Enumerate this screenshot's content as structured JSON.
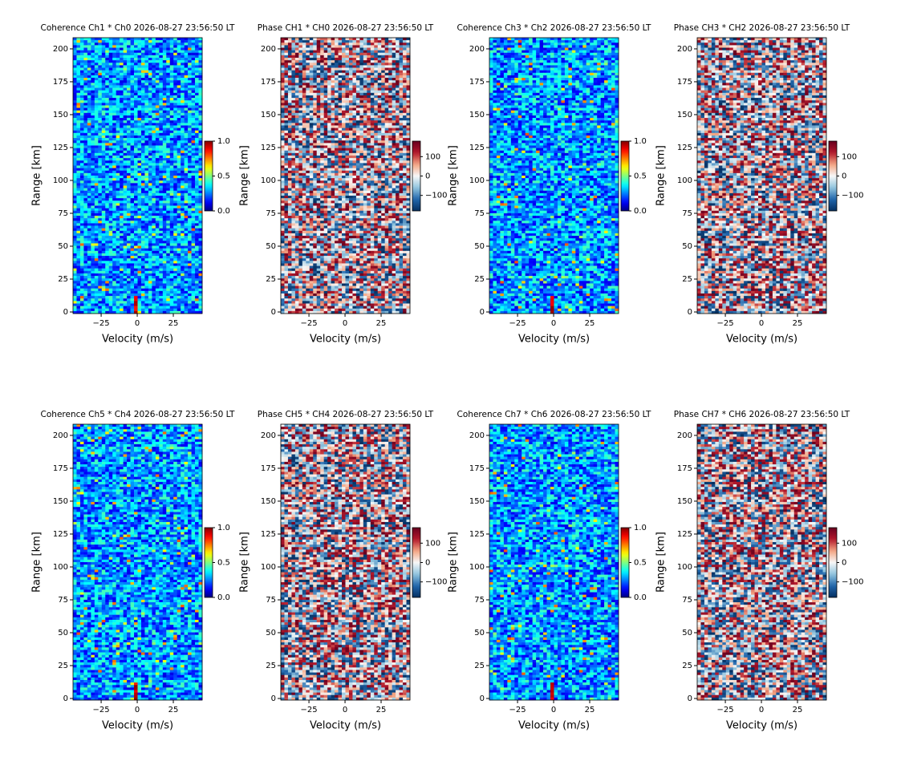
{
  "chart_data": [
    {
      "type": "heatmap",
      "title": "Coherence Ch1 * Ch0 2026-08-27 23:56:50 LT",
      "xlabel": "Velocity (m/s)",
      "ylabel": "Range [km]",
      "xlim": [
        -44.5,
        45
      ],
      "ylim": [
        -1.2,
        208.5
      ],
      "xticks": [
        {
          "value": -25,
          "label": "−25"
        },
        0,
        25
      ],
      "yticks": [
        0,
        25,
        50,
        75,
        100,
        125,
        150,
        175,
        200
      ],
      "colormap": "jet",
      "clim": [
        0,
        1
      ],
      "cticks": [
        {
          "value": 0,
          "label": "0.0"
        },
        {
          "value": 0.5,
          "label": "0.5"
        },
        {
          "value": 1,
          "label": "1.0"
        }
      ]
    },
    {
      "type": "heatmap",
      "title": "Phase CH1 * CH0 2026-08-27 23:56:50 LT",
      "xlabel": "Velocity (m/s)",
      "ylabel": "Range [km]",
      "xlim": [
        -44.5,
        45
      ],
      "ylim": [
        -1.2,
        208.5
      ],
      "xticks": [
        {
          "value": -25,
          "label": "−25"
        },
        0,
        25
      ],
      "yticks": [
        0,
        25,
        50,
        75,
        100,
        125,
        150,
        175,
        200
      ],
      "colormap": "RdBu_r",
      "clim": [
        -180,
        180
      ],
      "cticks": [
        {
          "value": -100,
          "label": "−100"
        },
        0,
        100
      ]
    },
    {
      "type": "heatmap",
      "title": "Coherence Ch3 * Ch2 2026-08-27 23:56:50 LT",
      "xlabel": "Velocity (m/s)",
      "ylabel": "Range [km]",
      "xlim": [
        -44.5,
        45
      ],
      "ylim": [
        -1.2,
        208.5
      ],
      "xticks": [
        {
          "value": -25,
          "label": "−25"
        },
        0,
        25
      ],
      "yticks": [
        0,
        25,
        50,
        75,
        100,
        125,
        150,
        175,
        200
      ],
      "colormap": "jet",
      "clim": [
        0,
        1
      ],
      "cticks": [
        {
          "value": 0,
          "label": "0.0"
        },
        {
          "value": 0.5,
          "label": "0.5"
        },
        {
          "value": 1,
          "label": "1.0"
        }
      ]
    },
    {
      "type": "heatmap",
      "title": "Phase CH3 * CH2 2026-08-27 23:56:50 LT",
      "xlabel": "Velocity (m/s)",
      "ylabel": "Range [km]",
      "xlim": [
        -44.5,
        45
      ],
      "ylim": [
        -1.2,
        208.5
      ],
      "xticks": [
        {
          "value": -25,
          "label": "−25"
        },
        0,
        25
      ],
      "yticks": [
        0,
        25,
        50,
        75,
        100,
        125,
        150,
        175,
        200
      ],
      "colormap": "RdBu_r",
      "clim": [
        -180,
        180
      ],
      "cticks": [
        {
          "value": -100,
          "label": "−100"
        },
        0,
        100
      ]
    },
    {
      "type": "heatmap",
      "title": "Coherence Ch5 * Ch4 2026-08-27 23:56:50 LT",
      "xlabel": "Velocity (m/s)",
      "ylabel": "Range [km]",
      "xlim": [
        -44.5,
        45
      ],
      "ylim": [
        -1.2,
        208.5
      ],
      "xticks": [
        {
          "value": -25,
          "label": "−25"
        },
        0,
        25
      ],
      "yticks": [
        0,
        25,
        50,
        75,
        100,
        125,
        150,
        175,
        200
      ],
      "colormap": "jet",
      "clim": [
        0,
        1
      ],
      "cticks": [
        {
          "value": 0,
          "label": "0.0"
        },
        {
          "value": 0.5,
          "label": "0.5"
        },
        {
          "value": 1,
          "label": "1.0"
        }
      ]
    },
    {
      "type": "heatmap",
      "title": "Phase CH5 * CH4 2026-08-27 23:56:50 LT",
      "xlabel": "Velocity (m/s)",
      "ylabel": "Range [km]",
      "xlim": [
        -44.5,
        45
      ],
      "ylim": [
        -1.2,
        208.5
      ],
      "xticks": [
        {
          "value": -25,
          "label": "−25"
        },
        0,
        25
      ],
      "yticks": [
        0,
        25,
        50,
        75,
        100,
        125,
        150,
        175,
        200
      ],
      "colormap": "RdBu_r",
      "clim": [
        -180,
        180
      ],
      "cticks": [
        {
          "value": -100,
          "label": "−100"
        },
        0,
        100
      ]
    },
    {
      "type": "heatmap",
      "title": "Coherence Ch7 * Ch6 2026-08-27 23:56:50 LT",
      "xlabel": "Velocity (m/s)",
      "ylabel": "Range [km]",
      "xlim": [
        -44.5,
        45
      ],
      "ylim": [
        -1.2,
        208.5
      ],
      "xticks": [
        {
          "value": -25,
          "label": "−25"
        },
        0,
        25
      ],
      "yticks": [
        0,
        25,
        50,
        75,
        100,
        125,
        150,
        175,
        200
      ],
      "colormap": "jet",
      "clim": [
        0,
        1
      ],
      "cticks": [
        {
          "value": 0,
          "label": "0.0"
        },
        {
          "value": 0.5,
          "label": "0.5"
        },
        {
          "value": 1,
          "label": "1.0"
        }
      ]
    },
    {
      "type": "heatmap",
      "title": "Phase CH7 * CH6 2026-08-27 23:56:50 LT",
      "xlabel": "Velocity (m/s)",
      "ylabel": "Range [km]",
      "xlim": [
        -44.5,
        45
      ],
      "ylim": [
        -1.2,
        208.5
      ],
      "xticks": [
        {
          "value": -25,
          "label": "−25"
        },
        0,
        25
      ],
      "yticks": [
        0,
        25,
        50,
        75,
        100,
        125,
        150,
        175,
        200
      ],
      "colormap": "RdBu_r",
      "clim": [
        -180,
        180
      ],
      "cticks": [
        {
          "value": -100,
          "label": "−100"
        },
        0,
        100
      ]
    }
  ]
}
